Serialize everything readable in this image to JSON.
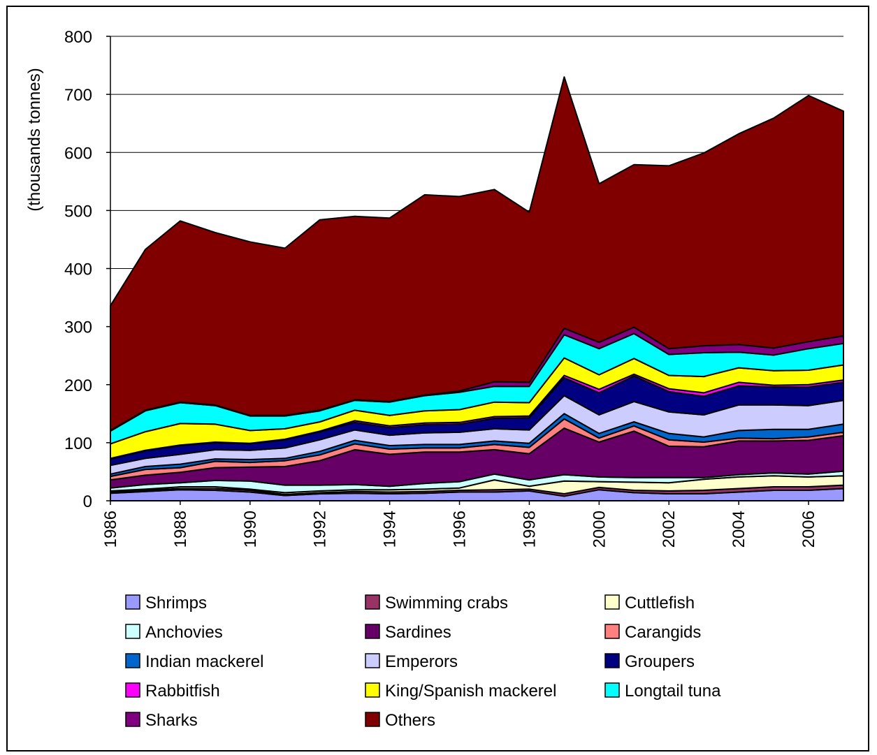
{
  "chart_data": {
    "type": "area",
    "stacked": true,
    "title": "",
    "xlabel": "",
    "ylabel": "(thousands tonnes)",
    "ylim": [
      0,
      800
    ],
    "yticks": [
      0,
      100,
      200,
      300,
      400,
      500,
      600,
      700,
      800
    ],
    "grid": "horizontal",
    "legend_position": "bottom",
    "x": [
      1986,
      1987,
      1988,
      1989,
      1990,
      1991,
      1992,
      1993,
      1994,
      1995,
      1996,
      1997,
      1998,
      1999,
      2000,
      2001,
      2002,
      2003,
      2004,
      2005,
      2006,
      2007
    ],
    "xtick_labels": [
      "1986",
      "1988",
      "1990",
      "1992",
      "1994",
      "1996",
      "1998",
      "2000",
      "2002",
      "2004",
      "2006"
    ],
    "series": [
      {
        "name": "Shrimps",
        "color": "#9999ff",
        "values": [
          13,
          16,
          19,
          18,
          15,
          9,
          12,
          13,
          12,
          13,
          15,
          15,
          17,
          8,
          19,
          14,
          12,
          12,
          15,
          18,
          18,
          21
        ]
      },
      {
        "name": "Swimming crabs",
        "color": "#993366",
        "values": [
          2,
          2,
          2,
          3,
          3,
          2,
          2,
          3,
          3,
          3,
          3,
          4,
          3,
          4,
          4,
          4,
          5,
          6,
          6,
          6,
          6,
          6
        ]
      },
      {
        "name": "Cuttlefish",
        "color": "#ffffcc",
        "values": [
          2,
          2,
          3,
          3,
          2,
          3,
          3,
          3,
          4,
          4,
          4,
          17,
          5,
          22,
          10,
          14,
          14,
          19,
          20,
          19,
          17,
          16
        ]
      },
      {
        "name": "Anchovies",
        "color": "#ccffff",
        "values": [
          5,
          8,
          7,
          11,
          14,
          13,
          10,
          9,
          6,
          10,
          11,
          10,
          11,
          11,
          8,
          8,
          9,
          3,
          4,
          5,
          5,
          8
        ]
      },
      {
        "name": "Sardines",
        "color": "#660066",
        "values": [
          14,
          16,
          18,
          22,
          24,
          32,
          42,
          60,
          55,
          54,
          51,
          42,
          45,
          80,
          60,
          80,
          54,
          53,
          58,
          55,
          58,
          61
        ]
      },
      {
        "name": "Carangids",
        "color": "#ff8080",
        "values": [
          6,
          10,
          8,
          11,
          8,
          10,
          10,
          10,
          9,
          7,
          7,
          9,
          11,
          16,
          7,
          9,
          11,
          8,
          5,
          4,
          6,
          6
        ]
      },
      {
        "name": "Indian mackerel",
        "color": "#0066cc",
        "values": [
          4,
          5,
          6,
          4,
          5,
          4,
          6,
          6,
          6,
          6,
          6,
          6,
          7,
          9,
          8,
          7,
          11,
          9,
          13,
          16,
          13,
          14
        ]
      },
      {
        "name": "Emperors",
        "color": "#ccccff",
        "values": [
          15,
          14,
          17,
          16,
          16,
          18,
          20,
          18,
          18,
          20,
          21,
          21,
          23,
          31,
          32,
          35,
          37,
          38,
          44,
          42,
          41,
          41
        ]
      },
      {
        "name": "Groupers",
        "color": "#000080",
        "values": [
          11,
          13,
          15,
          12,
          11,
          14,
          14,
          13,
          13,
          14,
          14,
          18,
          21,
          31,
          38,
          44,
          35,
          32,
          33,
          31,
          32,
          31
        ]
      },
      {
        "name": "Rabbitfish",
        "color": "#ff00ff",
        "values": [
          1,
          1,
          1,
          1,
          1,
          1,
          1,
          3,
          3,
          3,
          3,
          3,
          3,
          4,
          6,
          3,
          5,
          6,
          6,
          3,
          4,
          4
        ]
      },
      {
        "name": "King/Spanish mackerel",
        "color": "#ffff00",
        "values": [
          25,
          32,
          37,
          31,
          22,
          18,
          16,
          18,
          18,
          21,
          22,
          25,
          23,
          30,
          25,
          27,
          23,
          28,
          25,
          25,
          25,
          26
        ]
      },
      {
        "name": "Longtail tuna",
        "color": "#00ffff",
        "values": [
          22,
          36,
          36,
          32,
          25,
          22,
          19,
          17,
          23,
          26,
          30,
          27,
          28,
          40,
          45,
          43,
          36,
          41,
          27,
          27,
          37,
          37
        ]
      },
      {
        "name": "Sharks",
        "color": "#800080",
        "values": [
          1,
          1,
          1,
          1,
          1,
          1,
          1,
          1,
          1,
          1,
          2,
          8,
          7,
          11,
          11,
          11,
          10,
          12,
          13,
          12,
          12,
          13
        ]
      },
      {
        "name": "Others",
        "color": "#800000",
        "values": [
          215,
          277,
          312,
          297,
          299,
          288,
          328,
          316,
          316,
          345,
          335,
          331,
          293,
          433,
          273,
          280,
          315,
          332,
          363,
          396,
          424,
          387
        ]
      }
    ]
  }
}
